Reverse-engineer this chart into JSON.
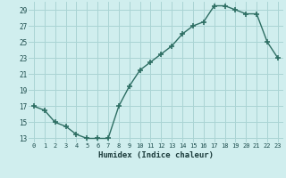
{
  "x": [
    0,
    1,
    2,
    3,
    4,
    5,
    6,
    7,
    8,
    9,
    10,
    11,
    12,
    13,
    14,
    15,
    16,
    17,
    18,
    19,
    20,
    21,
    22,
    23
  ],
  "y": [
    17,
    16.5,
    15,
    14.5,
    13.5,
    13,
    13,
    13,
    17,
    19.5,
    21.5,
    22.5,
    23.5,
    24.5,
    26,
    27,
    27.5,
    29.5,
    29.5,
    29,
    28.5,
    28.5,
    25,
    23
  ],
  "xlabel": "Humidex (Indice chaleur)",
  "ylim": [
    12.5,
    30
  ],
  "yticks": [
    13,
    15,
    17,
    19,
    21,
    23,
    25,
    27,
    29
  ],
  "xticks": [
    0,
    1,
    2,
    3,
    4,
    5,
    6,
    7,
    8,
    9,
    10,
    11,
    12,
    13,
    14,
    15,
    16,
    17,
    18,
    19,
    20,
    21,
    22,
    23
  ],
  "line_color": "#2d6e63",
  "bg_color": "#d0eeee",
  "grid_color": "#aad4d4",
  "tick_label_color": "#1a4a4a",
  "xlabel_color": "#1a3a3a"
}
